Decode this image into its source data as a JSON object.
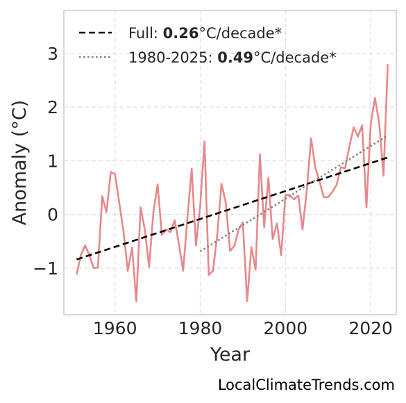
{
  "chart_data": {
    "type": "line",
    "xlabel": "Year",
    "ylabel": "Anomaly (°C)",
    "xlim": [
      1948,
      2026
    ],
    "ylim": [
      -1.87,
      3.8
    ],
    "xticks": [
      1960,
      1980,
      2000,
      2020
    ],
    "xtick_labels": [
      "1960",
      "1980",
      "2000",
      "2020"
    ],
    "yticks": [
      -1,
      0,
      1,
      2,
      3
    ],
    "ytick_labels": [
      "−1",
      "0",
      "1",
      "2",
      "3"
    ],
    "grid": true,
    "legend_position": "top-left",
    "series": [
      {
        "key": "anomaly",
        "color": "#e8888a",
        "x": [
          1951,
          1952,
          1953,
          1954,
          1955,
          1956,
          1957,
          1958,
          1959,
          1960,
          1961,
          1962,
          1963,
          1964,
          1965,
          1966,
          1967,
          1968,
          1969,
          1970,
          1971,
          1972,
          1973,
          1974,
          1975,
          1976,
          1977,
          1978,
          1979,
          1980,
          1981,
          1982,
          1983,
          1984,
          1985,
          1986,
          1987,
          1988,
          1989,
          1990,
          1991,
          1992,
          1993,
          1994,
          1995,
          1996,
          1997,
          1998,
          1999,
          2000,
          2001,
          2002,
          2003,
          2004,
          2005,
          2006,
          2007,
          2008,
          2009,
          2010,
          2011,
          2012,
          2013,
          2014,
          2015,
          2016,
          2017,
          2018,
          2019,
          2020,
          2021,
          2022,
          2023,
          2024
        ],
        "y": [
          -1.12,
          -0.75,
          -0.58,
          -0.76,
          -1.0,
          -0.99,
          0.34,
          0.04,
          0.79,
          0.75,
          0.22,
          -0.32,
          -1.05,
          -0.62,
          -1.62,
          0.13,
          -0.28,
          -0.98,
          0.04,
          0.56,
          -0.38,
          -0.28,
          -0.33,
          -0.11,
          -0.55,
          -1.05,
          -0.06,
          0.85,
          -0.58,
          0.17,
          1.36,
          -1.13,
          -1.05,
          -0.37,
          0.57,
          0.21,
          -0.68,
          -0.59,
          -0.28,
          -0.15,
          -1.62,
          -0.61,
          -1.03,
          1.12,
          -0.24,
          0.68,
          -0.46,
          -0.17,
          -0.76,
          0.36,
          0.36,
          0.28,
          0.35,
          -0.28,
          0.44,
          1.42,
          0.87,
          0.61,
          0.32,
          0.32,
          0.42,
          0.55,
          0.88,
          0.86,
          1.27,
          1.62,
          1.45,
          1.66,
          0.13,
          1.69,
          2.17,
          1.7,
          0.72,
          2.8
        ]
      },
      {
        "key": "full_trend",
        "color": "#000000",
        "style": "dashed",
        "x": [
          1951,
          2024
        ],
        "y": [
          -0.84,
          1.06
        ]
      },
      {
        "key": "recent_trend",
        "color": "#808080",
        "style": "dotted",
        "x": [
          1980,
          2024
        ],
        "y": [
          -0.69,
          1.47
        ]
      }
    ],
    "legend": [
      {
        "series": "full_trend",
        "prefix": "Full: ",
        "value": "0.26",
        "suffix": "°C/decade*"
      },
      {
        "series": "recent_trend",
        "prefix": "1980-2025: ",
        "value": "0.49",
        "suffix": "°C/decade*"
      }
    ]
  },
  "credit": "LocalClimateTrends.com"
}
